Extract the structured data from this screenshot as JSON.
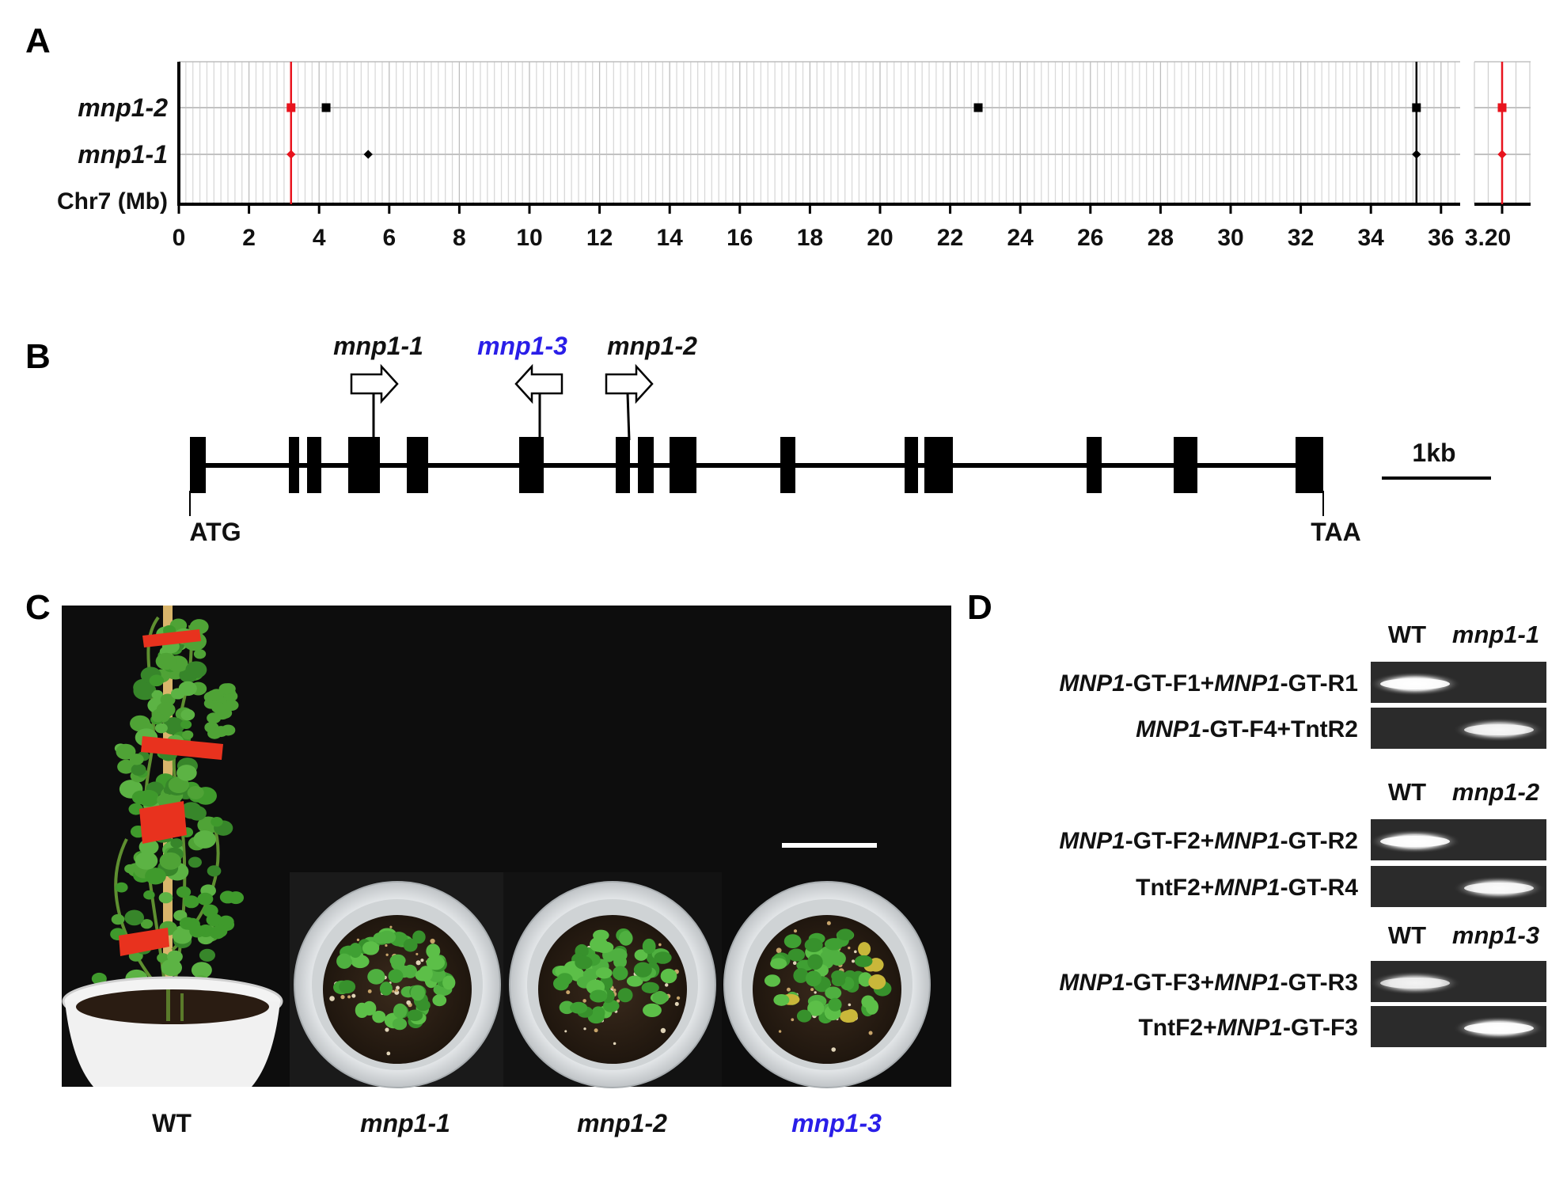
{
  "panels": {
    "a": "A",
    "b": "B",
    "c": "C",
    "d": "D"
  },
  "panel_a": {
    "rows": [
      "mnp1-2",
      "mnp1-1"
    ],
    "axis_label": "Chr7 (Mb)",
    "ticks": [
      "0",
      "2",
      "4",
      "6",
      "8",
      "10",
      "12",
      "14",
      "16",
      "18",
      "20",
      "22",
      "24",
      "26",
      "28",
      "30",
      "32",
      "34",
      "36"
    ],
    "inset_tick": "3.20",
    "red_line_mb": 3.2,
    "black_line_mb": 35.3,
    "markers": [
      {
        "row": "mnp1-2",
        "mb": 3.2,
        "color": "#e8141e"
      },
      {
        "row": "mnp1-2",
        "mb": 4.2,
        "color": "#000000"
      },
      {
        "row": "mnp1-2",
        "mb": 22.8,
        "color": "#000000"
      },
      {
        "row": "mnp1-2",
        "mb": 35.3,
        "color": "#000000"
      },
      {
        "row": "mnp1-1",
        "mb": 3.2,
        "color": "#e8141e"
      },
      {
        "row": "mnp1-1",
        "mb": 5.4,
        "color": "#000000"
      },
      {
        "row": "mnp1-1",
        "mb": 35.3,
        "color": "#000000"
      }
    ]
  },
  "panel_b": {
    "insertions": [
      {
        "label": "mnp1-1",
        "direction": "right",
        "color": "black"
      },
      {
        "label": "mnp1-3",
        "direction": "left",
        "color": "blue"
      },
      {
        "label": "mnp1-2",
        "direction": "right",
        "color": "black"
      }
    ],
    "start_label": "ATG",
    "end_label": "TAA",
    "scale_label": "1kb"
  },
  "panel_c": {
    "captions": [
      "WT",
      "mnp1-1",
      "mnp1-2",
      "mnp1-3"
    ]
  },
  "panel_d": {
    "groups": [
      {
        "header_wt": "WT",
        "header_mut": "mnp1-1",
        "primers": [
          {
            "p1": "MNP1",
            "p2": "-GT-F1+",
            "p3": "MNP1",
            "p4": "-GT-R1"
          },
          {
            "p1": "MNP1",
            "p2": "-GT-F4+TntR2",
            "p3": "",
            "p4": ""
          }
        ]
      },
      {
        "header_wt": "WT",
        "header_mut": "mnp1-2",
        "primers": [
          {
            "p1": "MNP1",
            "p2": "-GT-F2+",
            "p3": "MNP1",
            "p4": "-GT-R2"
          },
          {
            "p1": "",
            "p2": "TntF2+",
            "p3": "MNP1",
            "p4": "-GT-R4"
          }
        ]
      },
      {
        "header_wt": "WT",
        "header_mut": "mnp1-3",
        "primers": [
          {
            "p1": "MNP1",
            "p2": "-GT-F3+",
            "p3": "MNP1",
            "p4": "-GT-R3"
          },
          {
            "p1": "",
            "p2": "TntF2+",
            "p3": "MNP1",
            "p4": "-GT-F3"
          }
        ]
      }
    ]
  },
  "colors": {
    "blue_label": "#2a1ee8",
    "red_marker": "#e8141e",
    "plant_green": "#3f9a2c",
    "tape_red": "#e8321e"
  }
}
